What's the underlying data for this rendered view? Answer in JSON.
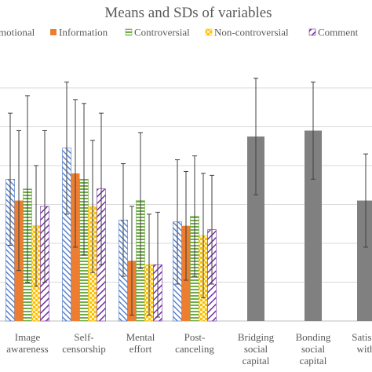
{
  "chart_data": {
    "type": "bar",
    "title": "Means and SDs of variables",
    "categories": [
      [
        "Image",
        "awareness"
      ],
      [
        "Self-",
        "censorship"
      ],
      [
        "Mental",
        "effort"
      ],
      [
        "Post-",
        "canceling"
      ],
      [
        "Bridging",
        "social",
        "capital"
      ],
      [
        "Bonding",
        "social",
        "capital"
      ],
      [
        "Satisfa",
        "with"
      ]
    ],
    "legend_position": "top",
    "grid": true,
    "ylim": [
      0,
      6
    ],
    "series": [
      {
        "name": "Emotional",
        "legend_label": "motional",
        "color": "#4472C4",
        "pattern": "diag",
        "values": [
          3.65,
          4.45,
          2.6,
          2.55,
          null,
          null,
          null
        ],
        "errors": [
          1.7,
          1.7,
          1.45,
          1.6,
          null,
          null,
          null
        ]
      },
      {
        "name": "Information",
        "legend_label": "Information",
        "color": "#ED7D31",
        "pattern": "solid",
        "values": [
          3.1,
          3.8,
          1.55,
          2.45,
          null,
          null,
          null
        ],
        "errors": [
          1.8,
          1.9,
          1.4,
          1.4,
          null,
          null,
          null
        ]
      },
      {
        "name": "Controversial",
        "legend_label": "Controversial",
        "color": "#70AD47",
        "pattern": "hlines",
        "values": [
          3.4,
          3.65,
          3.1,
          2.7,
          null,
          null,
          null
        ],
        "errors": [
          2.4,
          1.95,
          1.75,
          1.55,
          null,
          null,
          null
        ]
      },
      {
        "name": "Non-controversial",
        "legend_label": "Non-controversial",
        "color": "#FFC000",
        "pattern": "dots",
        "values": [
          2.45,
          2.95,
          1.45,
          2.2,
          null,
          null,
          null
        ],
        "errors": [
          1.55,
          1.7,
          1.3,
          1.6,
          null,
          null,
          null
        ]
      },
      {
        "name": "Comment",
        "legend_label": "Comment",
        "color": "#7030A0",
        "pattern": "diag2",
        "values": [
          2.95,
          3.4,
          1.45,
          2.35,
          null,
          null,
          null
        ],
        "errors": [
          1.95,
          1.95,
          1.35,
          1.4,
          null,
          null,
          null
        ]
      },
      {
        "name": "",
        "legend_label": "",
        "color": "#808080",
        "pattern": "solid",
        "values": [
          null,
          null,
          null,
          null,
          4.75,
          4.9,
          3.1
        ],
        "errors": [
          null,
          null,
          null,
          null,
          1.5,
          1.25,
          1.2
        ]
      }
    ]
  }
}
